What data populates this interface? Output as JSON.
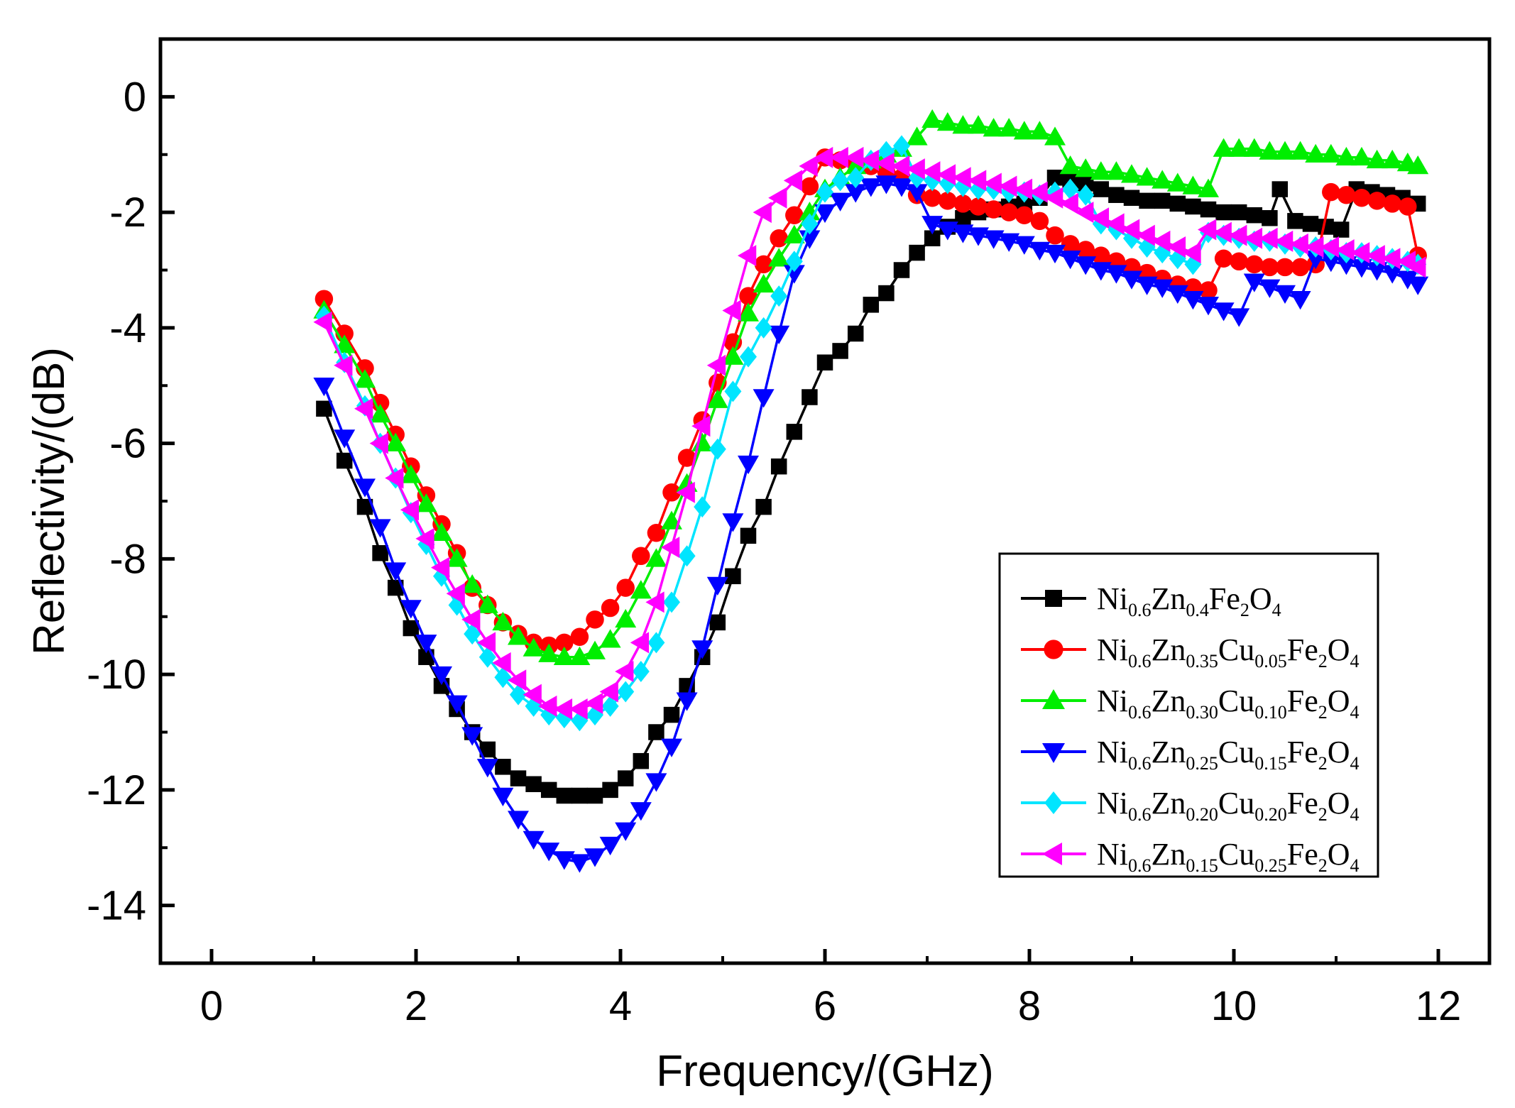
{
  "chart_data": {
    "type": "line",
    "title": "",
    "xlabel": "Frequency/(GHz)",
    "ylabel": "Reflectivity/(dB)",
    "xlim": [
      -0.5,
      12.5
    ],
    "ylim": [
      -15,
      1
    ],
    "xticks": [
      0,
      2,
      4,
      6,
      8,
      10,
      12
    ],
    "yticks": [
      0,
      -2,
      -4,
      -6,
      -8,
      -10,
      -12,
      -14
    ],
    "legend_position": "bottom-right",
    "series": [
      {
        "name": "Ni0.6Zn0.4Fe2O4",
        "legend": [
          {
            "t": "Ni"
          },
          {
            "t": "0.6",
            "sub": true
          },
          {
            "t": "Zn"
          },
          {
            "t": "0.4",
            "sub": true
          },
          {
            "t": "Fe"
          },
          {
            "t": "2",
            "sub": true
          },
          {
            "t": "O"
          },
          {
            "t": "4",
            "sub": true
          }
        ],
        "color": "#000000",
        "marker": "square",
        "x": [
          1.1,
          1.3,
          1.5,
          1.65,
          1.8,
          1.95,
          2.1,
          2.25,
          2.4,
          2.55,
          2.7,
          2.85,
          3.0,
          3.15,
          3.3,
          3.45,
          3.6,
          3.75,
          3.9,
          4.05,
          4.2,
          4.35,
          4.5,
          4.65,
          4.8,
          4.95,
          5.1,
          5.25,
          5.4,
          5.55,
          5.7,
          5.85,
          6.0,
          6.15,
          6.3,
          6.45,
          6.6,
          6.75,
          6.9,
          7.05,
          7.2,
          7.35,
          7.5,
          7.65,
          7.8,
          7.95,
          8.1,
          8.25,
          8.4,
          8.55,
          8.7,
          8.85,
          9.0,
          9.15,
          9.3,
          9.45,
          9.6,
          9.75,
          9.9,
          10.05,
          10.2,
          10.35,
          10.45,
          10.6,
          10.75,
          10.9,
          11.05,
          11.2,
          11.35,
          11.5,
          11.65,
          11.8
        ],
        "y": [
          -5.4,
          -6.3,
          -7.1,
          -7.9,
          -8.5,
          -9.2,
          -9.7,
          -10.2,
          -10.6,
          -11.0,
          -11.3,
          -11.6,
          -11.8,
          -11.9,
          -12.0,
          -12.1,
          -12.1,
          -12.1,
          -12.0,
          -11.8,
          -11.5,
          -11.0,
          -10.7,
          -10.2,
          -9.7,
          -9.1,
          -8.3,
          -7.6,
          -7.1,
          -6.4,
          -5.8,
          -5.2,
          -4.6,
          -4.4,
          -4.1,
          -3.6,
          -3.4,
          -3.0,
          -2.7,
          -2.45,
          -2.25,
          -2.1,
          -2.0,
          -1.95,
          -1.9,
          -1.85,
          -1.75,
          -1.4,
          -1.45,
          -1.5,
          -1.6,
          -1.7,
          -1.75,
          -1.8,
          -1.8,
          -1.85,
          -1.9,
          -1.95,
          -2.0,
          -2.0,
          -2.05,
          -2.1,
          -1.6,
          -2.15,
          -2.2,
          -2.25,
          -2.3,
          -1.6,
          -1.65,
          -1.7,
          -1.75,
          -1.85
        ]
      },
      {
        "name": "Ni0.6Zn0.35Cu0.05Fe2O4",
        "legend": [
          {
            "t": "Ni"
          },
          {
            "t": "0.6",
            "sub": true
          },
          {
            "t": "Zn"
          },
          {
            "t": "0.35",
            "sub": true
          },
          {
            "t": "Cu"
          },
          {
            "t": "0.05",
            "sub": true
          },
          {
            "t": "Fe"
          },
          {
            "t": "2",
            "sub": true
          },
          {
            "t": "O"
          },
          {
            "t": "4",
            "sub": true
          }
        ],
        "color": "#ff0000",
        "marker": "circle",
        "x": [
          1.1,
          1.3,
          1.5,
          1.65,
          1.8,
          1.95,
          2.1,
          2.25,
          2.4,
          2.55,
          2.7,
          2.85,
          3.0,
          3.15,
          3.3,
          3.45,
          3.6,
          3.75,
          3.9,
          4.05,
          4.2,
          4.35,
          4.5,
          4.65,
          4.8,
          4.95,
          5.1,
          5.25,
          5.4,
          5.55,
          5.7,
          5.85,
          6.0,
          6.15,
          6.3,
          6.45,
          6.6,
          6.75,
          6.9,
          7.05,
          7.2,
          7.35,
          7.5,
          7.65,
          7.8,
          7.95,
          8.1,
          8.25,
          8.4,
          8.55,
          8.7,
          8.85,
          9.0,
          9.15,
          9.3,
          9.45,
          9.6,
          9.75,
          9.9,
          10.05,
          10.2,
          10.35,
          10.5,
          10.65,
          10.8,
          10.95,
          11.1,
          11.25,
          11.4,
          11.55,
          11.7,
          11.8
        ],
        "y": [
          -3.5,
          -4.1,
          -4.7,
          -5.3,
          -5.85,
          -6.4,
          -6.9,
          -7.4,
          -7.9,
          -8.5,
          -8.8,
          -9.1,
          -9.3,
          -9.45,
          -9.5,
          -9.45,
          -9.35,
          -9.05,
          -8.85,
          -8.5,
          -7.95,
          -7.55,
          -6.85,
          -6.25,
          -5.6,
          -4.95,
          -4.25,
          -3.45,
          -2.9,
          -2.45,
          -2.05,
          -1.55,
          -1.05,
          -1.1,
          -1.15,
          -1.2,
          -1.3,
          -1.4,
          -1.7,
          -1.75,
          -1.8,
          -1.85,
          -1.9,
          -1.95,
          -2.0,
          -2.05,
          -2.15,
          -2.4,
          -2.55,
          -2.65,
          -2.75,
          -2.85,
          -2.95,
          -3.05,
          -3.15,
          -3.25,
          -3.3,
          -3.35,
          -2.8,
          -2.85,
          -2.9,
          -2.95,
          -2.95,
          -2.95,
          -2.9,
          -1.65,
          -1.7,
          -1.75,
          -1.8,
          -1.85,
          -1.9,
          -2.75
        ]
      },
      {
        "name": "Ni0.6Zn0.30Cu0.10Fe2O4",
        "legend": [
          {
            "t": "Ni"
          },
          {
            "t": "0.6",
            "sub": true
          },
          {
            "t": "Zn"
          },
          {
            "t": "0.30",
            "sub": true
          },
          {
            "t": "Cu"
          },
          {
            "t": "0.10",
            "sub": true
          },
          {
            "t": "Fe"
          },
          {
            "t": "2",
            "sub": true
          },
          {
            "t": "O"
          },
          {
            "t": "4",
            "sub": true
          }
        ],
        "color": "#00ee00",
        "marker": "triangle-up",
        "x": [
          1.1,
          1.3,
          1.5,
          1.65,
          1.8,
          1.95,
          2.1,
          2.25,
          2.4,
          2.55,
          2.7,
          2.85,
          3.0,
          3.15,
          3.3,
          3.45,
          3.6,
          3.75,
          3.9,
          4.05,
          4.2,
          4.35,
          4.5,
          4.65,
          4.8,
          4.95,
          5.1,
          5.25,
          5.4,
          5.55,
          5.7,
          5.85,
          6.0,
          6.15,
          6.3,
          6.45,
          6.6,
          6.75,
          6.9,
          7.05,
          7.2,
          7.35,
          7.5,
          7.65,
          7.8,
          7.95,
          8.1,
          8.25,
          8.4,
          8.55,
          8.7,
          8.85,
          9.0,
          9.15,
          9.3,
          9.45,
          9.6,
          9.75,
          9.9,
          10.05,
          10.2,
          10.35,
          10.5,
          10.65,
          10.8,
          10.95,
          11.1,
          11.25,
          11.4,
          11.55,
          11.7,
          11.8
        ],
        "y": [
          -3.7,
          -4.3,
          -4.9,
          -5.5,
          -6.0,
          -6.55,
          -7.05,
          -7.55,
          -8.0,
          -8.45,
          -8.8,
          -9.1,
          -9.35,
          -9.55,
          -9.65,
          -9.7,
          -9.7,
          -9.6,
          -9.4,
          -9.05,
          -8.55,
          -8.0,
          -7.35,
          -6.7,
          -6.0,
          -5.25,
          -4.5,
          -3.75,
          -3.25,
          -2.8,
          -2.4,
          -2.0,
          -1.6,
          -1.4,
          -1.2,
          -1.1,
          -1.0,
          -0.9,
          -0.7,
          -0.4,
          -0.45,
          -0.5,
          -0.5,
          -0.55,
          -0.55,
          -0.6,
          -0.6,
          -0.7,
          -1.2,
          -1.25,
          -1.3,
          -1.3,
          -1.35,
          -1.4,
          -1.45,
          -1.5,
          -1.55,
          -1.6,
          -0.9,
          -0.9,
          -0.9,
          -0.95,
          -0.95,
          -0.95,
          -1.0,
          -1.0,
          -1.05,
          -1.05,
          -1.1,
          -1.1,
          -1.15,
          -1.2
        ]
      },
      {
        "name": "Ni0.6Zn0.25Cu0.15Fe2O4",
        "legend": [
          {
            "t": "Ni"
          },
          {
            "t": "0.6",
            "sub": true
          },
          {
            "t": "Zn"
          },
          {
            "t": "0.25",
            "sub": true
          },
          {
            "t": "Cu"
          },
          {
            "t": "0.15",
            "sub": true
          },
          {
            "t": "Fe"
          },
          {
            "t": "2",
            "sub": true
          },
          {
            "t": "O"
          },
          {
            "t": "4",
            "sub": true
          }
        ],
        "color": "#0000ff",
        "marker": "triangle-down",
        "x": [
          1.1,
          1.3,
          1.5,
          1.65,
          1.8,
          1.95,
          2.1,
          2.25,
          2.4,
          2.55,
          2.7,
          2.85,
          3.0,
          3.15,
          3.3,
          3.45,
          3.6,
          3.75,
          3.9,
          4.05,
          4.2,
          4.35,
          4.5,
          4.65,
          4.8,
          4.95,
          5.1,
          5.25,
          5.4,
          5.55,
          5.7,
          5.85,
          6.0,
          6.15,
          6.3,
          6.45,
          6.6,
          6.75,
          6.9,
          7.05,
          7.2,
          7.35,
          7.5,
          7.65,
          7.8,
          7.95,
          8.1,
          8.25,
          8.4,
          8.55,
          8.7,
          8.85,
          9.0,
          9.15,
          9.3,
          9.45,
          9.6,
          9.75,
          9.9,
          10.05,
          10.2,
          10.35,
          10.5,
          10.65,
          10.8,
          10.95,
          11.1,
          11.25,
          11.4,
          11.55,
          11.7,
          11.8
        ],
        "y": [
          -5.0,
          -5.9,
          -6.75,
          -7.45,
          -8.2,
          -8.85,
          -9.45,
          -10.0,
          -10.5,
          -11.05,
          -11.6,
          -12.1,
          -12.5,
          -12.85,
          -13.05,
          -13.2,
          -13.25,
          -13.15,
          -12.95,
          -12.7,
          -12.35,
          -11.85,
          -11.25,
          -10.45,
          -9.55,
          -8.45,
          -7.35,
          -6.35,
          -5.2,
          -4.1,
          -3.05,
          -2.45,
          -2.0,
          -1.8,
          -1.65,
          -1.55,
          -1.5,
          -1.55,
          -1.65,
          -2.2,
          -2.3,
          -2.35,
          -2.4,
          -2.45,
          -2.5,
          -2.55,
          -2.65,
          -2.7,
          -2.8,
          -2.9,
          -3.0,
          -3.05,
          -3.15,
          -3.25,
          -3.3,
          -3.4,
          -3.5,
          -3.6,
          -3.7,
          -3.8,
          -3.2,
          -3.3,
          -3.4,
          -3.5,
          -2.8,
          -2.85,
          -2.9,
          -2.95,
          -3.0,
          -3.05,
          -3.15,
          -3.25
        ]
      },
      {
        "name": "Ni0.6Zn0.20Cu0.20Fe2O4",
        "legend": [
          {
            "t": "Ni"
          },
          {
            "t": "0.6",
            "sub": true
          },
          {
            "t": "Zn"
          },
          {
            "t": "0.20",
            "sub": true
          },
          {
            "t": "Cu"
          },
          {
            "t": "0.20",
            "sub": true
          },
          {
            "t": "Fe"
          },
          {
            "t": "2",
            "sub": true
          },
          {
            "t": "O"
          },
          {
            "t": "4",
            "sub": true
          }
        ],
        "color": "#00e5ff",
        "marker": "diamond",
        "x": [
          1.1,
          1.3,
          1.5,
          1.65,
          1.8,
          1.95,
          2.1,
          2.25,
          2.4,
          2.55,
          2.7,
          2.85,
          3.0,
          3.15,
          3.3,
          3.45,
          3.6,
          3.75,
          3.9,
          4.05,
          4.2,
          4.35,
          4.5,
          4.65,
          4.8,
          4.95,
          5.1,
          5.25,
          5.4,
          5.55,
          5.7,
          5.85,
          6.0,
          6.15,
          6.3,
          6.45,
          6.6,
          6.75,
          6.9,
          7.05,
          7.2,
          7.35,
          7.5,
          7.65,
          7.8,
          7.95,
          8.1,
          8.25,
          8.4,
          8.55,
          8.7,
          8.85,
          9.0,
          9.15,
          9.3,
          9.45,
          9.6,
          9.75,
          9.9,
          10.05,
          10.2,
          10.35,
          10.5,
          10.65,
          10.8,
          10.95,
          11.1,
          11.25,
          11.4,
          11.55,
          11.7,
          11.8
        ],
        "y": [
          -3.8,
          -4.6,
          -5.35,
          -6.0,
          -6.6,
          -7.2,
          -7.75,
          -8.3,
          -8.8,
          -9.3,
          -9.7,
          -10.05,
          -10.35,
          -10.55,
          -10.7,
          -10.75,
          -10.8,
          -10.7,
          -10.55,
          -10.3,
          -9.95,
          -9.45,
          -8.75,
          -7.95,
          -7.1,
          -6.1,
          -5.1,
          -4.5,
          -4.0,
          -3.45,
          -2.85,
          -2.2,
          -1.65,
          -1.45,
          -1.4,
          -1.1,
          -0.95,
          -0.85,
          -1.4,
          -1.45,
          -1.5,
          -1.55,
          -1.6,
          -1.6,
          -1.65,
          -1.65,
          -1.7,
          -1.65,
          -1.6,
          -1.7,
          -2.2,
          -2.3,
          -2.45,
          -2.6,
          -2.7,
          -2.8,
          -2.9,
          -2.35,
          -2.4,
          -2.45,
          -2.5,
          -2.5,
          -2.55,
          -2.6,
          -2.6,
          -2.65,
          -2.7,
          -2.7,
          -2.75,
          -2.8,
          -2.85,
          -2.9
        ]
      },
      {
        "name": "Ni0.6Zn0.15Cu0.25Fe2O4",
        "legend": [
          {
            "t": "Ni"
          },
          {
            "t": "0.6",
            "sub": true
          },
          {
            "t": "Zn"
          },
          {
            "t": "0.15",
            "sub": true
          },
          {
            "t": "Cu"
          },
          {
            "t": "0.25",
            "sub": true
          },
          {
            "t": "Fe"
          },
          {
            "t": "2",
            "sub": true
          },
          {
            "t": "O"
          },
          {
            "t": "4",
            "sub": true
          }
        ],
        "color": "#ff00ff",
        "marker": "triangle-left",
        "x": [
          1.1,
          1.3,
          1.5,
          1.65,
          1.8,
          1.95,
          2.1,
          2.25,
          2.4,
          2.55,
          2.7,
          2.85,
          3.0,
          3.15,
          3.3,
          3.45,
          3.6,
          3.75,
          3.9,
          4.05,
          4.2,
          4.35,
          4.5,
          4.65,
          4.8,
          4.95,
          5.1,
          5.25,
          5.4,
          5.55,
          5.7,
          5.85,
          6.0,
          6.15,
          6.3,
          6.45,
          6.6,
          6.75,
          6.9,
          7.05,
          7.2,
          7.35,
          7.5,
          7.65,
          7.8,
          7.95,
          8.1,
          8.25,
          8.4,
          8.55,
          8.7,
          8.85,
          9.0,
          9.15,
          9.3,
          9.45,
          9.6,
          9.75,
          9.9,
          10.05,
          10.2,
          10.35,
          10.5,
          10.65,
          10.8,
          10.95,
          11.1,
          11.25,
          11.4,
          11.55,
          11.7,
          11.8
        ],
        "y": [
          -3.9,
          -4.65,
          -5.4,
          -6.0,
          -6.6,
          -7.15,
          -7.65,
          -8.15,
          -8.6,
          -9.05,
          -9.45,
          -9.8,
          -10.1,
          -10.35,
          -10.55,
          -10.6,
          -10.6,
          -10.5,
          -10.3,
          -9.95,
          -9.45,
          -8.75,
          -7.8,
          -6.85,
          -5.7,
          -4.65,
          -3.7,
          -2.75,
          -2.0,
          -1.75,
          -1.45,
          -1.2,
          -1.05,
          -1.05,
          -1.05,
          -1.1,
          -1.15,
          -1.2,
          -1.25,
          -1.3,
          -1.35,
          -1.4,
          -1.45,
          -1.5,
          -1.55,
          -1.6,
          -1.65,
          -1.75,
          -1.85,
          -2.0,
          -2.1,
          -2.2,
          -2.3,
          -2.4,
          -2.5,
          -2.6,
          -2.7,
          -2.3,
          -2.35,
          -2.4,
          -2.45,
          -2.45,
          -2.5,
          -2.55,
          -2.6,
          -2.6,
          -2.65,
          -2.7,
          -2.75,
          -2.8,
          -2.85,
          -2.95
        ]
      }
    ]
  }
}
